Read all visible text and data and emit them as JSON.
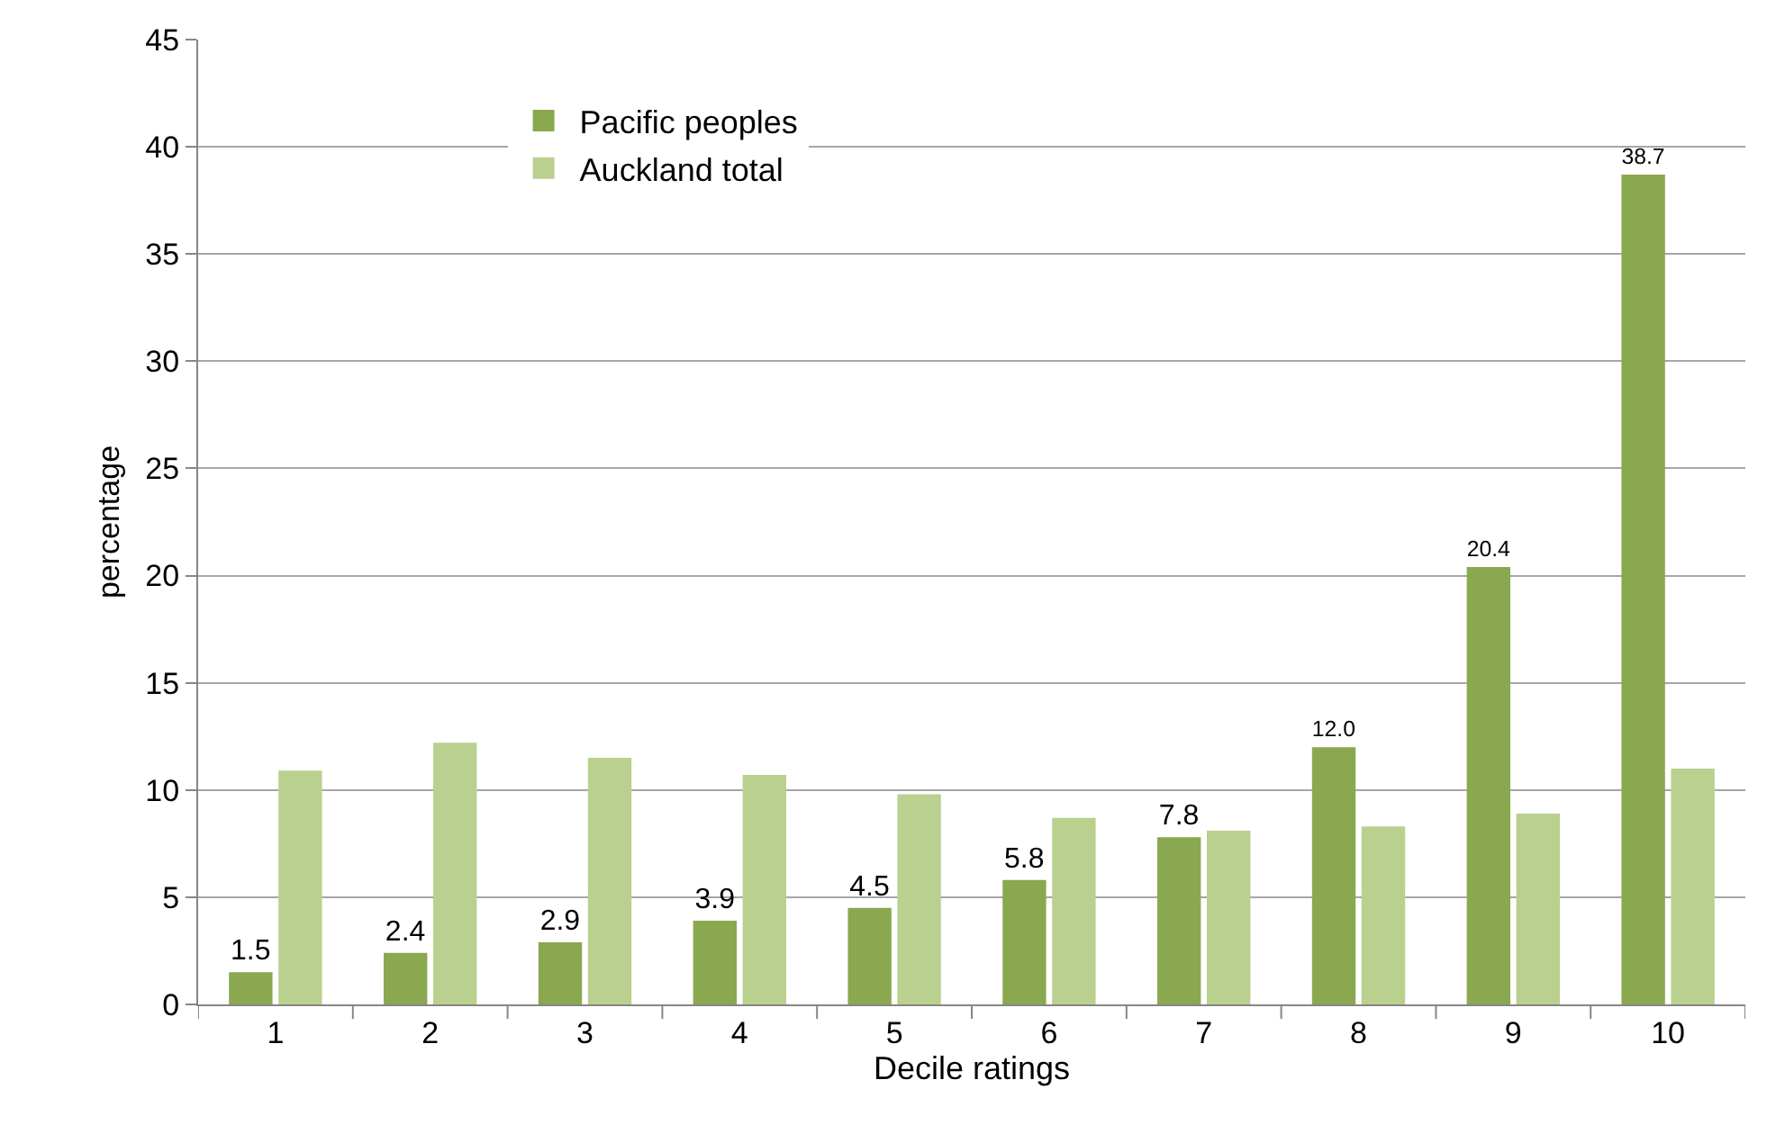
{
  "chart_data": {
    "type": "bar",
    "xlabel": "Decile ratings",
    "ylabel": "percentage",
    "categories": [
      "1",
      "2",
      "3",
      "4",
      "5",
      "6",
      "7",
      "8",
      "9",
      "10"
    ],
    "series": [
      {
        "name": "Pacific peoples",
        "color": "#8aa84f",
        "values": [
          1.5,
          2.4,
          2.9,
          3.9,
          4.5,
          5.8,
          7.8,
          12.0,
          20.4,
          38.7
        ],
        "value_labels": [
          "1.5",
          "2.4",
          "2.9",
          "3.9",
          "4.5",
          "5.8",
          "7.8",
          "12.0",
          "20.4",
          "38.7"
        ]
      },
      {
        "name": "Auckland total",
        "color": "#b9d08f",
        "values": [
          10.9,
          12.2,
          11.5,
          10.7,
          9.8,
          8.7,
          8.1,
          8.3,
          8.9,
          11.0
        ]
      }
    ],
    "ylim": [
      0,
      45
    ],
    "yticks": [
      0,
      5,
      10,
      15,
      20,
      25,
      30,
      35,
      40,
      45
    ],
    "grid": "y",
    "legend": "top left"
  }
}
